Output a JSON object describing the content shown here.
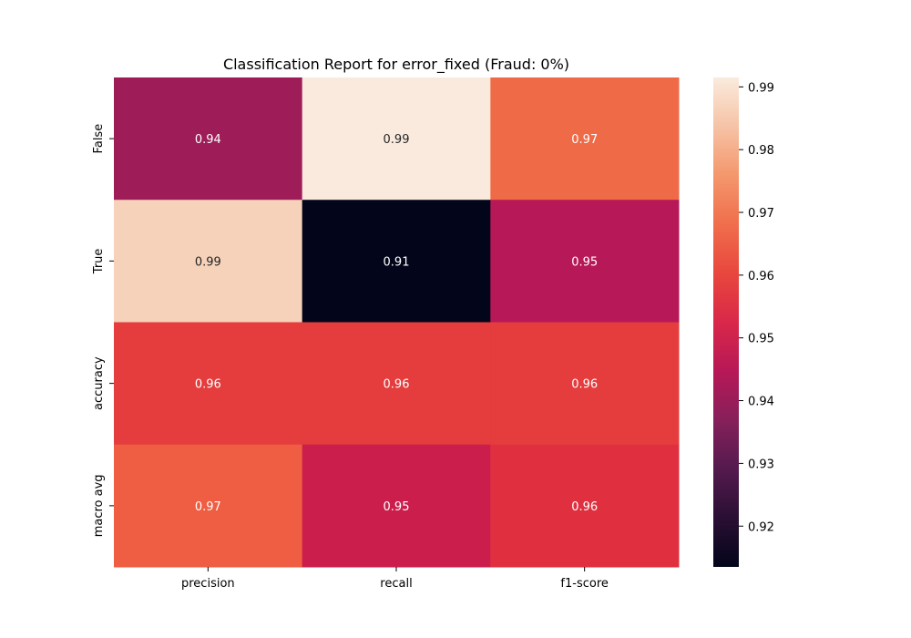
{
  "chart_data": {
    "type": "heatmap",
    "title": "Classification Report for error_fixed (Fraud: 0%)",
    "columns": [
      "precision",
      "recall",
      "f1-score"
    ],
    "rows": [
      "False",
      "True",
      "accuracy",
      "macro avg"
    ],
    "values": [
      [
        0.94,
        0.99,
        0.97
      ],
      [
        0.99,
        0.91,
        0.95
      ],
      [
        0.96,
        0.96,
        0.96
      ],
      [
        0.97,
        0.95,
        0.96
      ]
    ],
    "annotations": [
      [
        "0.94",
        "0.99",
        "0.97"
      ],
      [
        "0.99",
        "0.91",
        "0.95"
      ],
      [
        "0.96",
        "0.96",
        "0.96"
      ],
      [
        "0.97",
        "0.95",
        "0.96"
      ]
    ],
    "colormap": "rocket",
    "colorbar": {
      "range": [
        0.9135,
        0.9915
      ],
      "ticks": [
        0.92,
        0.93,
        0.94,
        0.95,
        0.96,
        0.97,
        0.98,
        0.99
      ],
      "tick_labels": [
        "0.92",
        "0.93",
        "0.94",
        "0.95",
        "0.96",
        "0.97",
        "0.98",
        "0.99"
      ]
    },
    "colors": {
      "row0": [
        "#9e1d59",
        "#faeade",
        "#ef6b48"
      ],
      "row1": [
        "#f5d2b9",
        "#03051a",
        "#b71857"
      ],
      "row2": [
        "#e53d3d",
        "#e53d3d",
        "#e53d3d"
      ],
      "row3": [
        "#ef5d42",
        "#cc1e4d",
        "#e0303f"
      ]
    }
  }
}
